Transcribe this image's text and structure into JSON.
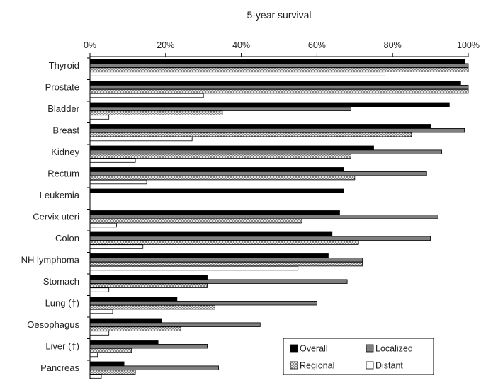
{
  "chart_data": {
    "type": "bar",
    "orientation": "horizontal",
    "title": "",
    "xlabel": "5-year survival",
    "ylabel": "",
    "xlim": [
      0,
      100
    ],
    "x_ticks": [
      "0%",
      "20%",
      "40%",
      "60%",
      "80%",
      "100%"
    ],
    "grid": false,
    "legend_position": "bottom-right",
    "categories": [
      "Thyroid",
      "Prostate",
      "Bladder",
      "Breast",
      "Kidney",
      "Rectum",
      "Leukemia",
      "Cervix uteri",
      "Colon",
      "NH lymphoma",
      "Stomach",
      "Lung (†)",
      "Oesophagus",
      "Liver (‡)",
      "Pancreas"
    ],
    "series": [
      {
        "name": "Overall",
        "fill": "solid-black",
        "values": [
          99,
          98,
          95,
          90,
          75,
          67,
          67,
          66,
          64,
          63,
          31,
          23,
          19,
          18,
          9
        ]
      },
      {
        "name": "Localized",
        "fill": "solid-gray",
        "values": [
          100,
          100,
          69,
          99,
          93,
          89,
          null,
          92,
          90,
          72,
          68,
          60,
          45,
          31,
          34
        ]
      },
      {
        "name": "Regional",
        "fill": "crosshatch",
        "values": [
          100,
          100,
          35,
          85,
          69,
          70,
          null,
          56,
          71,
          72,
          31,
          33,
          24,
          11,
          12
        ]
      },
      {
        "name": "Distant",
        "fill": "white",
        "values": [
          78,
          30,
          5,
          27,
          12,
          15,
          null,
          7,
          14,
          55,
          5,
          6,
          5,
          2,
          3
        ]
      }
    ],
    "colors": {
      "overall": "#000000",
      "localized": "#7f7f7f",
      "regional_hatch": "#888888",
      "distant": "#ffffff",
      "outline": "#000000"
    }
  }
}
